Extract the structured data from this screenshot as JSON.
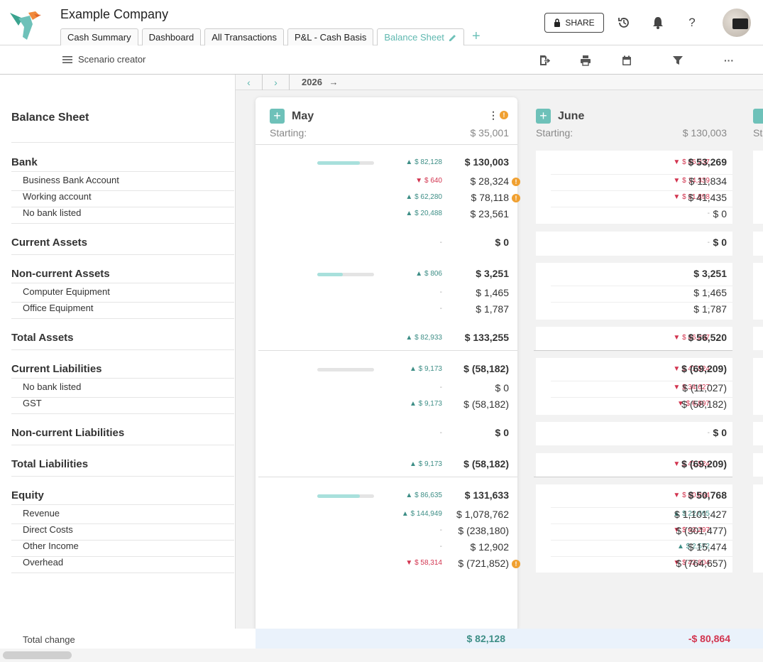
{
  "header": {
    "company": "Example Company",
    "share_label": "SHARE"
  },
  "tabs": [
    "Cash Summary",
    "Dashboard",
    "All Transactions",
    "P&L - Cash Basis",
    "Balance Sheet"
  ],
  "toolbar": {
    "scenario_label": "Scenario creator"
  },
  "nav": {
    "year": "2026"
  },
  "left": {
    "title": "Balance Sheet",
    "bank": "Bank",
    "business_bank": "Business Bank Account",
    "working": "Working account",
    "no_bank": "No bank listed",
    "current_assets": "Current Assets",
    "noncurrent_assets": "Non-current Assets",
    "computer": "Computer Equipment",
    "office": "Office Equipment",
    "total_assets": "Total Assets",
    "current_liab": "Current Liabilities",
    "cl_no_bank": "No bank listed",
    "gst": "GST",
    "noncurrent_liab": "Non-current Liabilities",
    "total_liab": "Total Liabilities",
    "equity": "Equity",
    "revenue": "Revenue",
    "direct": "Direct Costs",
    "other_income": "Other Income",
    "overhead": "Overhead"
  },
  "months": {
    "may": {
      "name": "May",
      "starting_label": "Starting:",
      "starting": "$ 35,001",
      "bank": {
        "d": "▲ $ 82,128",
        "v": "$ 130,003",
        "bar": 0.75
      },
      "business_bank": {
        "d": "▼ $ 640",
        "v": "$ 28,324"
      },
      "working": {
        "d": "▲ $ 62,280",
        "v": "$ 78,118"
      },
      "no_bank": {
        "d": "▲ $ 20,488",
        "v": "$ 23,561"
      },
      "current_assets": {
        "d": "-",
        "v": "$ 0"
      },
      "noncurrent_assets": {
        "d": "▲ $ 806",
        "v": "$ 3,251",
        "bar": 0.45
      },
      "computer": {
        "d": "-",
        "v": "$ 1,465"
      },
      "office": {
        "d": "-",
        "v": "$ 1,787"
      },
      "total_assets": {
        "d": "▲ $ 82,933",
        "v": "$ 133,255"
      },
      "current_liab": {
        "d": "▲ $ 9,173",
        "v": "$ (58,182)",
        "bar": 0
      },
      "cl_no_bank": {
        "d": "-",
        "v": "$ 0"
      },
      "gst": {
        "d": "▲ $ 9,173",
        "v": "$ (58,182)"
      },
      "noncurrent_liab": {
        "d": "-",
        "v": "$ 0"
      },
      "total_liab": {
        "d": "▲ $ 9,173",
        "v": "$ (58,182)"
      },
      "equity": {
        "d": "▲ $ 86,635",
        "v": "$ 131,633",
        "bar": 0.75
      },
      "revenue": {
        "d": "▲ $ 144,949",
        "v": "$ 1,078,762"
      },
      "direct": {
        "d": "-",
        "v": "$ (238,180)"
      },
      "other_income": {
        "d": "-",
        "v": "$ 12,902"
      },
      "overhead": {
        "d": "▼ $ 58,314",
        "v": "$ (721,852)"
      },
      "total_change": "$ 82,128"
    },
    "june": {
      "name": "June",
      "starting_label": "Starting:",
      "starting": "$ 130,003",
      "bank": {
        "d": "▼ $ 46,237",
        "v": "$ 53,269"
      },
      "business_bank": {
        "d": "▼ $ 14,339",
        "v": "$ 11,834"
      },
      "working": {
        "d": "▼ $ 31,898",
        "v": "$ 41,435"
      },
      "no_bank": {
        "d": "-",
        "v": "$ 0"
      },
      "current_assets": {
        "d": "-",
        "v": "$ 0"
      },
      "noncurrent_assets": {
        "d": "-",
        "v": "$ 3,251"
      },
      "computer": {
        "d": "-",
        "v": "$ 1,465"
      },
      "office": {
        "d": "-",
        "v": "$ 1,787"
      },
      "total_assets": {
        "d": "▼ $ 46,237",
        "v": "$ 56,520"
      },
      "current_liab": {
        "d": "▼ $ 41,524",
        "v": "$ (69,209)"
      },
      "cl_no_bank": {
        "d": "▼ $ 34,627",
        "v": "$ (11,027)"
      },
      "gst": {
        "d": "▼ $ 6,897",
        "v": "$ (58,182)"
      },
      "noncurrent_liab": {
        "d": "-",
        "v": "$ 0"
      },
      "total_liab": {
        "d": "▼ $ 41,524",
        "v": "$ (69,209)"
      },
      "equity": {
        "d": "▼ $ 80,864",
        "v": "$ 50,768"
      },
      "revenue": {
        "d": "▲ $ 22,665",
        "v": "$ 1,101,427"
      },
      "direct": {
        "d": "▼ $ 63,297",
        "v": "$ (301,477)"
      },
      "other_income": {
        "d": "▲ $ 2,572",
        "v": "$ 15,474"
      },
      "overhead": {
        "d": "▼ $ 42,804",
        "v": "$ (764,657)"
      },
      "total_change": "-$ 80,864"
    }
  },
  "footer": {
    "label": "Total change"
  },
  "colors": {
    "accent": "#6ec1b9",
    "up": "#3d8e86",
    "down": "#d2344f",
    "warning": "#f0a030"
  }
}
